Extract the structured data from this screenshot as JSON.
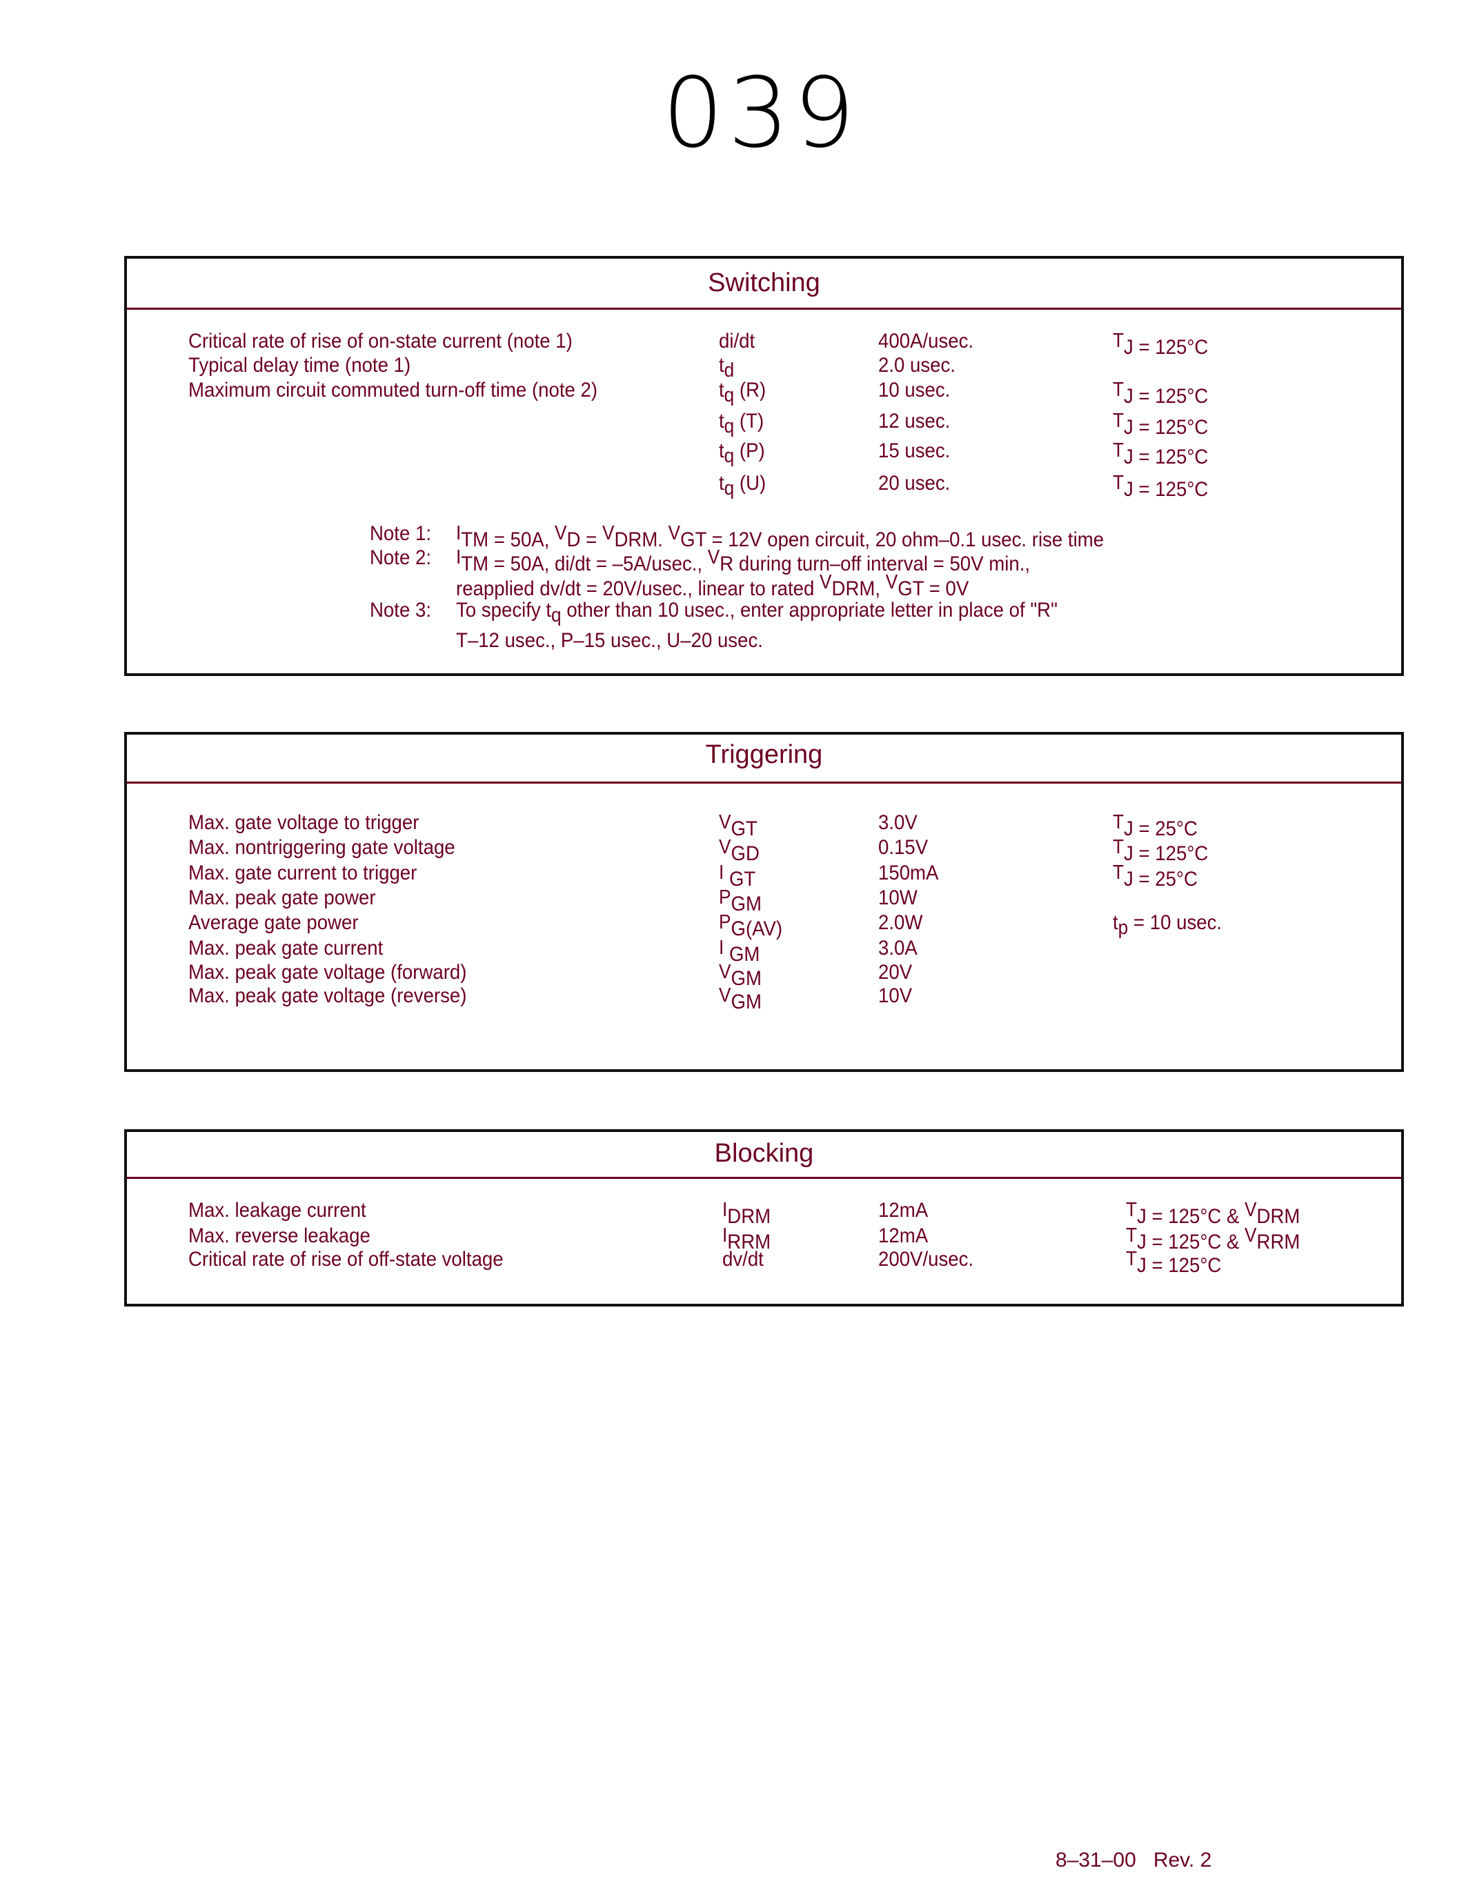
{
  "doc_title": "039",
  "colors": {
    "text": "#6b0020",
    "border": "#111111"
  },
  "switching": {
    "title": "Switching",
    "rows": [
      {
        "param": "Critical rate of rise of on-state current (note 1)",
        "sym": [
          [
            "di/dt",
            "n"
          ]
        ],
        "value": "400A/usec.",
        "cond": [
          [
            "T",
            "lead"
          ],
          [
            "J",
            "n"
          ],
          [
            " = 125°C",
            "n"
          ]
        ]
      },
      {
        "param": "Typical delay time (note 1)",
        "sym": [
          [
            "t",
            "n"
          ],
          [
            "d",
            "sub"
          ]
        ],
        "value": "2.0 usec.",
        "cond": []
      },
      {
        "param": "Maximum circuit commuted turn-off time (note 2)",
        "sym": [
          [
            "t",
            "n"
          ],
          [
            "q",
            "sub"
          ],
          [
            " (R)",
            "n"
          ]
        ],
        "value": "10 usec.",
        "cond": [
          [
            "T",
            "lead"
          ],
          [
            "J",
            "n"
          ],
          [
            " = 125°C",
            "n"
          ]
        ]
      },
      {
        "param": "",
        "sym": [
          [
            "t",
            "n"
          ],
          [
            "q",
            "sub"
          ],
          [
            " (T)",
            "n"
          ]
        ],
        "value": "12 usec.",
        "cond": [
          [
            "T",
            "lead"
          ],
          [
            "J",
            "n"
          ],
          [
            " = 125°C",
            "n"
          ]
        ]
      },
      {
        "param": "",
        "sym": [
          [
            "t",
            "n"
          ],
          [
            "q",
            "sub"
          ],
          [
            " (P)",
            "n"
          ]
        ],
        "value": "15 usec.",
        "cond": [
          [
            "T",
            "lead"
          ],
          [
            "J",
            "n"
          ],
          [
            " = 125°C",
            "n"
          ]
        ]
      },
      {
        "param": "",
        "sym": [
          [
            "t",
            "n"
          ],
          [
            "q",
            "sub"
          ],
          [
            " (U)",
            "n"
          ]
        ],
        "value": "20 usec.",
        "cond": [
          [
            "T",
            "lead"
          ],
          [
            "J",
            "n"
          ],
          [
            " = 125°C",
            "n"
          ]
        ]
      }
    ],
    "notes": [
      {
        "label": "Note 1:",
        "text": [
          [
            "I",
            "lead"
          ],
          [
            "TM",
            "n"
          ],
          [
            " = 50A, ",
            "n"
          ],
          [
            "V",
            "lead"
          ],
          [
            "D",
            "n"
          ],
          [
            " = ",
            "n"
          ],
          [
            "V",
            "lead"
          ],
          [
            "DRM. ",
            "n"
          ],
          [
            "V",
            "lead"
          ],
          [
            "GT",
            "n"
          ],
          [
            " = 12V open circuit, 20 ohm–0.1 usec. rise time",
            "n"
          ]
        ]
      },
      {
        "label": "Note 2:",
        "text": [
          [
            "I",
            "lead"
          ],
          [
            "TM",
            "n"
          ],
          [
            " = 50A, di/dt = –5A/usec., ",
            "n"
          ],
          [
            "V",
            "lead"
          ],
          [
            "R",
            "n"
          ],
          [
            " during turn–off interval = 50V min.,",
            "n"
          ]
        ]
      },
      {
        "label": "",
        "text": [
          [
            "reapplied dv/dt = 20V/usec., linear to rated ",
            "n"
          ],
          [
            "V",
            "lead"
          ],
          [
            "DRM, ",
            "n"
          ],
          [
            "V",
            "lead"
          ],
          [
            "GT",
            "n"
          ],
          [
            " = 0V",
            "n"
          ]
        ]
      },
      {
        "label": "Note 3:",
        "text": [
          [
            "To specify t",
            "n"
          ],
          [
            "q",
            "sub"
          ],
          [
            " other than 10 usec., enter appropriate letter in place of \"R\"",
            "n"
          ]
        ]
      },
      {
        "label": "",
        "text": [
          [
            "T–12 usec., P–15 usec., U–20 usec.",
            "n"
          ]
        ]
      }
    ]
  },
  "triggering": {
    "title": "Triggering",
    "rows": [
      {
        "param": "Max. gate voltage to trigger",
        "sym": [
          [
            "V",
            "lead"
          ],
          [
            "GT",
            "n"
          ]
        ],
        "value": "3.0V",
        "cond": [
          [
            "T",
            "lead"
          ],
          [
            "J",
            "n"
          ],
          [
            " = 25°C",
            "n"
          ]
        ]
      },
      {
        "param": "Max. nontriggering gate voltage",
        "sym": [
          [
            "V",
            "lead"
          ],
          [
            "GD",
            "n"
          ]
        ],
        "value": "0.15V",
        "cond": [
          [
            "T",
            "lead"
          ],
          [
            "J",
            "n"
          ],
          [
            " = 125°C",
            "n"
          ]
        ]
      },
      {
        "param": "Max. gate current to trigger",
        "sym": [
          [
            "I",
            "lead"
          ],
          [
            " GT",
            "n"
          ]
        ],
        "value": "150mA",
        "cond": [
          [
            "T",
            "lead"
          ],
          [
            "J",
            "n"
          ],
          [
            " = 25°C",
            "n"
          ]
        ]
      },
      {
        "param": "Max. peak gate power",
        "sym": [
          [
            "P",
            "lead"
          ],
          [
            "GM",
            "n"
          ]
        ],
        "value": "10W",
        "cond": []
      },
      {
        "param": "Average gate power",
        "sym": [
          [
            "P",
            "lead"
          ],
          [
            "G(AV)",
            "n"
          ]
        ],
        "value": "2.0W",
        "cond": [
          [
            "t",
            "n"
          ],
          [
            "p",
            "sub"
          ],
          [
            " = 10 usec.",
            "n"
          ]
        ]
      },
      {
        "param": "Max. peak gate current",
        "sym": [
          [
            "I",
            "lead"
          ],
          [
            " GM",
            "n"
          ]
        ],
        "value": "3.0A",
        "cond": []
      },
      {
        "param": "Max. peak gate voltage (forward)",
        "sym": [
          [
            "V",
            "lead"
          ],
          [
            "GM",
            "n"
          ]
        ],
        "value": "20V",
        "cond": []
      },
      {
        "param": "Max. peak gate voltage (reverse)",
        "sym": [
          [
            "V",
            "lead"
          ],
          [
            "GM",
            "n"
          ]
        ],
        "value": "10V",
        "cond": []
      }
    ]
  },
  "blocking": {
    "title": "Blocking",
    "rows": [
      {
        "param": "Max. leakage current",
        "sym": [
          [
            "I",
            "lead"
          ],
          [
            "DRM",
            "n"
          ]
        ],
        "value": "12mA",
        "cond": [
          [
            "T",
            "lead"
          ],
          [
            "J",
            "n"
          ],
          [
            " = 125°C & ",
            "n"
          ],
          [
            "V",
            "lead"
          ],
          [
            "DRM",
            "n"
          ]
        ]
      },
      {
        "param": "Max. reverse leakage",
        "sym": [
          [
            "I",
            "lead"
          ],
          [
            "RRM",
            "n"
          ]
        ],
        "value": "12mA",
        "cond": [
          [
            "T",
            "lead"
          ],
          [
            "J",
            "n"
          ],
          [
            " = 125°C & ",
            "n"
          ],
          [
            "V",
            "lead"
          ],
          [
            "RRM",
            "n"
          ]
        ]
      },
      {
        "param": "Critical rate of rise of off-state voltage",
        "sym": [
          [
            "dv/dt",
            "n"
          ]
        ],
        "value": "200V/usec.",
        "cond": [
          [
            "T",
            "lead"
          ],
          [
            "J",
            "n"
          ],
          [
            " = 125°C",
            "n"
          ]
        ]
      }
    ]
  },
  "footer": {
    "date": "8–31–00",
    "rev": "Rev. 2"
  }
}
